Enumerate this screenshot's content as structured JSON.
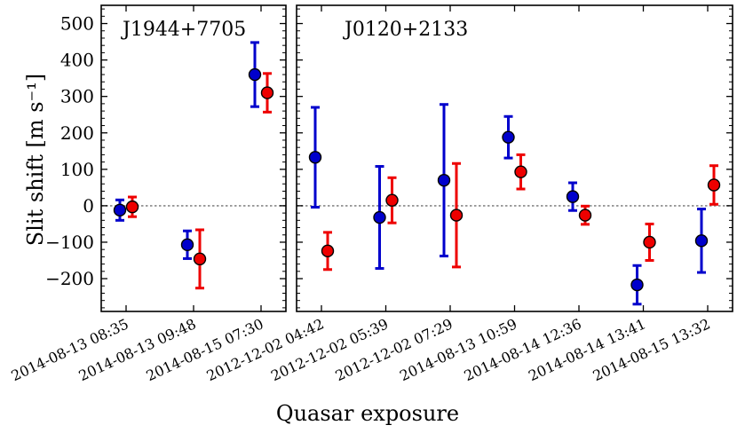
{
  "chart_data": {
    "type": "scatter",
    "title": "",
    "xlabel": "Quasar exposure",
    "ylabel": "Slit shift [m s⁻¹]",
    "ylim": [
      -290,
      550
    ],
    "yticks": [
      -200,
      -100,
      0,
      100,
      200,
      300,
      400,
      500
    ],
    "ytick_labels": [
      "−200",
      "−100",
      "0",
      "100",
      "200",
      "300",
      "400",
      "500"
    ],
    "zero_line": true,
    "series_colors": {
      "blue": "#0000cc",
      "red": "#ee0000"
    },
    "panels": [
      {
        "title": "J1944+7705",
        "categories": [
          "2014-08-13 08:35",
          "2014-08-13 09:48",
          "2014-08-15 07:30"
        ],
        "series": [
          {
            "name": "blue",
            "values": [
              -12,
              -107,
              360
            ],
            "errors": [
              28,
              38,
              88
            ]
          },
          {
            "name": "red",
            "values": [
              -3,
              -146,
              310
            ],
            "errors": [
              27,
              80,
              53
            ]
          }
        ]
      },
      {
        "title": "J0120+2133",
        "categories": [
          "2012-12-02 04:42",
          "2012-12-02 05:39",
          "2012-12-02 07:29",
          "2014-08-13 10:59",
          "2014-08-14 12:36",
          "2014-08-14 13:41",
          "2014-08-15 13:32"
        ],
        "series": [
          {
            "name": "blue",
            "values": [
              133,
              -32,
              70,
              188,
              25,
              -217,
              -96
            ],
            "errors": [
              137,
              140,
              208,
              57,
              38,
              53,
              87
            ]
          },
          {
            "name": "red",
            "values": [
              -124,
              15,
              -26,
              93,
              -26,
              -100,
              57
            ],
            "errors": [
              51,
              62,
              142,
              47,
              25,
              50,
              53
            ]
          }
        ]
      }
    ]
  }
}
